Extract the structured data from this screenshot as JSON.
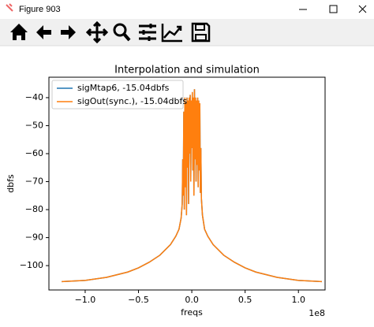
{
  "window": {
    "title": "Figure 903"
  },
  "chart_data": {
    "type": "line",
    "title": "Interpolation and simulation",
    "x_label": "freqs",
    "y_label": "dbfs",
    "x_offset_label": "1e8",
    "x": [
      -1.22,
      -1.0,
      -0.8,
      -0.6,
      -0.5,
      -0.4,
      -0.3,
      -0.2,
      -0.15,
      -0.12,
      -0.1,
      -0.09,
      -0.085,
      -0.08,
      -0.075,
      -0.07,
      -0.065,
      -0.06,
      -0.055,
      -0.05,
      -0.045,
      -0.04,
      -0.035,
      -0.03,
      -0.025,
      -0.02,
      -0.015,
      -0.01,
      -0.005,
      0,
      0.005,
      0.01,
      0.015,
      0.02,
      0.025,
      0.03,
      0.035,
      0.04,
      0.045,
      0.05,
      0.055,
      0.06,
      0.065,
      0.07,
      0.075,
      0.08,
      0.085,
      0.09,
      0.1,
      0.12,
      0.15,
      0.2,
      0.3,
      0.4,
      0.5,
      0.6,
      0.8,
      1.0,
      1.22
    ],
    "series": [
      {
        "name": "sigMtap6, -15.04dbfs",
        "color": "#1f77b4",
        "values": [
          -105.7,
          -105.3,
          -104.2,
          -102.3,
          -100.8,
          -98.8,
          -96.3,
          -92.5,
          -89.5,
          -87,
          -83,
          -78,
          -62,
          -75,
          -45,
          -80,
          -40,
          -72,
          -42,
          -82,
          -40,
          -65,
          -41,
          -78,
          -40,
          -60,
          -39,
          -70,
          -41,
          -58,
          -38,
          -66,
          -40,
          -75,
          -37,
          -62,
          -40,
          -70,
          -41,
          -64,
          -40,
          -72,
          -41,
          -66,
          -42,
          -74,
          -58,
          -76,
          -82,
          -87,
          -89.5,
          -92.5,
          -96.3,
          -98.8,
          -100.8,
          -102.3,
          -104.2,
          -105.3,
          -105.7
        ]
      },
      {
        "name": "sigOut(sync.), -15.04dbfs",
        "color": "#ff7f0e",
        "values": [
          -105.7,
          -105.3,
          -104.2,
          -102.3,
          -100.8,
          -98.8,
          -96.3,
          -92.5,
          -89.5,
          -87,
          -83,
          -78,
          -62,
          -75,
          -45,
          -80,
          -40,
          -72,
          -42,
          -82,
          -40,
          -65,
          -41,
          -78,
          -40,
          -60,
          -39,
          -70,
          -41,
          -58,
          -38,
          -66,
          -40,
          -75,
          -37,
          -62,
          -40,
          -70,
          -41,
          -64,
          -40,
          -72,
          -41,
          -66,
          -42,
          -74,
          -58,
          -76,
          -82,
          -87,
          -89.5,
          -92.5,
          -96.3,
          -98.8,
          -100.8,
          -102.3,
          -104.2,
          -105.3,
          -105.7
        ]
      }
    ],
    "xlim": [
      -1.34,
      1.25
    ],
    "ylim": [
      -108.7,
      -32.7
    ],
    "xticks": [
      {
        "value": -1.0,
        "label": "−1.0"
      },
      {
        "value": -0.5,
        "label": "−0.5"
      },
      {
        "value": 0.0,
        "label": "0.0"
      },
      {
        "value": 0.5,
        "label": "0.5"
      },
      {
        "value": 1.0,
        "label": "1.0"
      }
    ],
    "yticks": [
      {
        "value": -100,
        "label": "−100"
      },
      {
        "value": -90,
        "label": "−90"
      },
      {
        "value": -80,
        "label": "−80"
      },
      {
        "value": -70,
        "label": "−70"
      },
      {
        "value": -60,
        "label": "−60"
      },
      {
        "value": -50,
        "label": "−50"
      },
      {
        "value": -40,
        "label": "−40"
      }
    ],
    "legend": "upper left",
    "grid": false
  }
}
